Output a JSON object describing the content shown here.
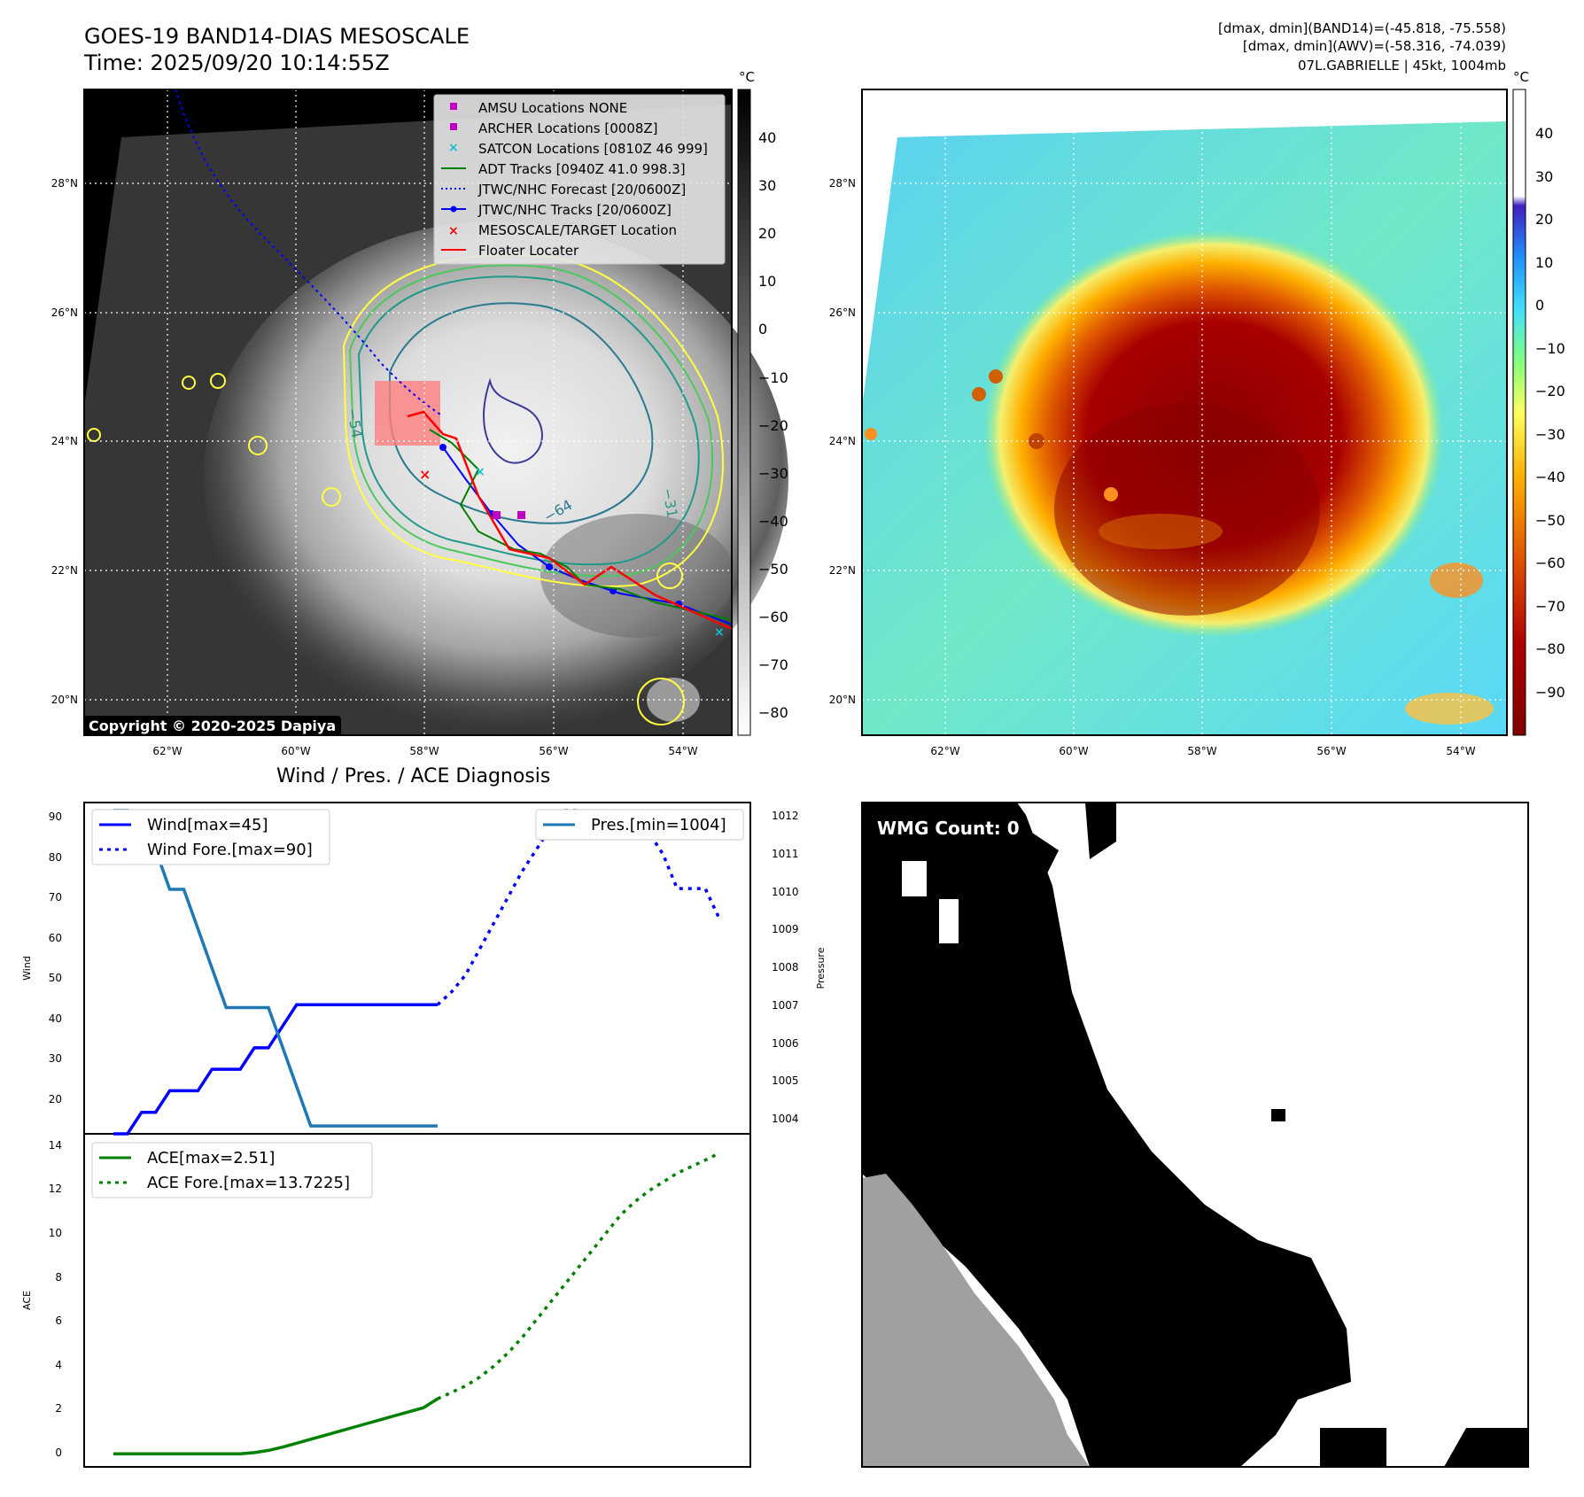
{
  "header": {
    "title_line1": "GOES-19 BAND14-DIAS MESOSCALE",
    "title_line2": "Time: 2025/09/20 10:14:55Z",
    "right_line1": "[dmax, dmin](BAND14)=(-45.818, -75.558)",
    "right_line2": "[dmax, dmin](AWV)=(-58.316, -74.039)",
    "right_line3": "07L.GABRIELLE | 45kt, 1004mb"
  },
  "ir_panel": {
    "lon_labels": [
      "62°W",
      "60°W",
      "58°W",
      "56°W",
      "54°W"
    ],
    "lat_labels": [
      "28°N",
      "26°N",
      "24°N",
      "22°N",
      "20°N"
    ],
    "colorbar_unit": "°C",
    "colorbar_ticks": [
      "40",
      "30",
      "20",
      "10",
      "0",
      "−10",
      "−20",
      "−30",
      "−40",
      "−50",
      "−60",
      "−70",
      "−80"
    ],
    "contour_labels": [
      "−54",
      "−64",
      "−31"
    ],
    "copyright": "Copyright © 2020-2025 Dapiya",
    "legend": [
      {
        "label": "AMSU Locations NONE",
        "marker": "square",
        "color": "#c000c0"
      },
      {
        "label": "ARCHER Locations [0008Z]",
        "marker": "square",
        "color": "#c000c0"
      },
      {
        "label": "SATCON Locations [0810Z 46 999]",
        "marker": "x",
        "color": "#17becf"
      },
      {
        "label": "ADT Tracks [0940Z 41.0 998.3]",
        "marker": "line",
        "color": "#008000"
      },
      {
        "label": "JTWC/NHC Forecast [20/0600Z]",
        "marker": "dotted",
        "color": "#0000ff"
      },
      {
        "label": "JTWC/NHC Tracks [20/0600Z]",
        "marker": "line-dot",
        "color": "#0000ff"
      },
      {
        "label": "MESOSCALE/TARGET Location",
        "marker": "x",
        "color": "#ff0000"
      },
      {
        "label": "Floater Locater",
        "marker": "line",
        "color": "#ff0000"
      }
    ]
  },
  "awv_panel": {
    "lon_labels": [
      "62°W",
      "60°W",
      "58°W",
      "56°W",
      "54°W"
    ],
    "lat_labels": [
      "28°N",
      "26°N",
      "24°N",
      "22°N",
      "20°N"
    ],
    "colorbar_unit": "°C",
    "colorbar_ticks": [
      "40",
      "30",
      "20",
      "10",
      "0",
      "−10",
      "−20",
      "−30",
      "−40",
      "−50",
      "−60",
      "−70",
      "−80",
      "−90"
    ]
  },
  "diagnosis": {
    "title": "Wind / Pres. / ACE Diagnosis",
    "wind_ylabel": "Wind",
    "pressure_ylabel": "Pressure",
    "ace_ylabel": "ACE",
    "wind_ticks": [
      "90",
      "80",
      "70",
      "60",
      "50",
      "40",
      "30",
      "20"
    ],
    "pressure_ticks": [
      "1012",
      "1011",
      "1010",
      "1009",
      "1008",
      "1007",
      "1006",
      "1005",
      "1004"
    ],
    "ace_ticks": [
      "14",
      "12",
      "10",
      "8",
      "6",
      "4",
      "2",
      "0"
    ],
    "legend_wind": "Wind[max=45]",
    "legend_wind_fore": "Wind Fore.[max=90]",
    "legend_pres": "Pres.[min=1004]",
    "legend_ace": "ACE[max=2.51]",
    "legend_ace_fore": "ACE Fore.[max=13.7225]",
    "colors": {
      "wind": "#0000ff",
      "pressure": "#1f77b4",
      "ace": "#008000"
    }
  },
  "wmg_panel": {
    "label": "WMG Count: 0"
  },
  "chart_data": [
    {
      "type": "line",
      "title": "Wind / Pres. / ACE Diagnosis",
      "ylabel": "Wind",
      "ylim": [
        15,
        92
      ],
      "series": [
        {
          "name": "Wind[max=45]",
          "style": "solid",
          "color": "#0000ff",
          "x": [
            0,
            1,
            2,
            3,
            4,
            5,
            6,
            7,
            8,
            9,
            10,
            11,
            12,
            13,
            14,
            15,
            16,
            17,
            18,
            19,
            20,
            21,
            22,
            23
          ],
          "values": [
            15,
            15,
            20,
            20,
            25,
            25,
            25,
            30,
            30,
            30,
            35,
            35,
            40,
            45,
            45,
            45,
            45,
            45,
            45,
            45,
            45,
            45,
            45,
            45
          ]
        },
        {
          "name": "Wind Fore.[max=90]",
          "style": "dotted",
          "color": "#0000ff",
          "x": [
            23,
            24,
            25,
            26,
            27,
            28,
            29,
            30,
            31,
            32,
            33,
            34,
            35,
            36,
            37,
            38,
            39,
            40,
            41,
            42,
            43
          ],
          "values": [
            45,
            48,
            52,
            58,
            64,
            70,
            76,
            81,
            86,
            90,
            90,
            90,
            88,
            85,
            85,
            85,
            80,
            72,
            72,
            72,
            65
          ]
        }
      ]
    },
    {
      "type": "line",
      "ylabel": "Pressure",
      "ylim": [
        1003.8,
        1012.2
      ],
      "series": [
        {
          "name": "Pres.[min=1004]",
          "style": "solid",
          "color": "#1f77b4",
          "x": [
            0,
            1,
            2,
            3,
            4,
            5,
            6,
            7,
            8,
            9,
            10,
            11,
            12,
            13,
            14,
            15,
            16,
            17,
            18,
            19,
            20,
            21,
            22,
            23
          ],
          "values": [
            1012,
            1012,
            1011,
            1011,
            1010,
            1010,
            1009,
            1008,
            1007,
            1007,
            1007,
            1007,
            1006,
            1005,
            1004,
            1004,
            1004,
            1004,
            1004,
            1004,
            1004,
            1004,
            1004,
            1004
          ]
        },
        {
          "name": "",
          "style": "dotted",
          "color": "#1f77b4",
          "x": [
            32,
            33,
            34,
            35,
            36,
            37
          ],
          "values": [
            1012,
            1012,
            1011.5,
            1011.5,
            1011.5,
            1012
          ]
        }
      ]
    },
    {
      "type": "line",
      "ylabel": "ACE",
      "ylim": [
        -0.6,
        14.6
      ],
      "series": [
        {
          "name": "ACE[max=2.51]",
          "style": "solid",
          "color": "#008000",
          "x": [
            0,
            1,
            2,
            3,
            4,
            5,
            6,
            7,
            8,
            9,
            10,
            11,
            12,
            13,
            14,
            15,
            16,
            17,
            18,
            19,
            20,
            21,
            22,
            23
          ],
          "values": [
            0,
            0,
            0,
            0,
            0,
            0,
            0,
            0,
            0,
            0,
            0.05,
            0.15,
            0.3,
            0.48,
            0.66,
            0.84,
            1.02,
            1.2,
            1.38,
            1.56,
            1.74,
            1.92,
            2.1,
            2.51
          ]
        },
        {
          "name": "ACE Fore.[max=13.7225]",
          "style": "dotted",
          "color": "#008000",
          "x": [
            23,
            24,
            25,
            26,
            27,
            28,
            29,
            30,
            31,
            32,
            33,
            34,
            35,
            36,
            37,
            38,
            39,
            40,
            41,
            42,
            43
          ],
          "values": [
            2.51,
            2.8,
            3.1,
            3.5,
            4.0,
            4.6,
            5.3,
            6.1,
            6.9,
            7.7,
            8.5,
            9.3,
            10.1,
            10.9,
            11.5,
            12.0,
            12.4,
            12.8,
            13.1,
            13.4,
            13.7225
          ]
        }
      ]
    }
  ]
}
